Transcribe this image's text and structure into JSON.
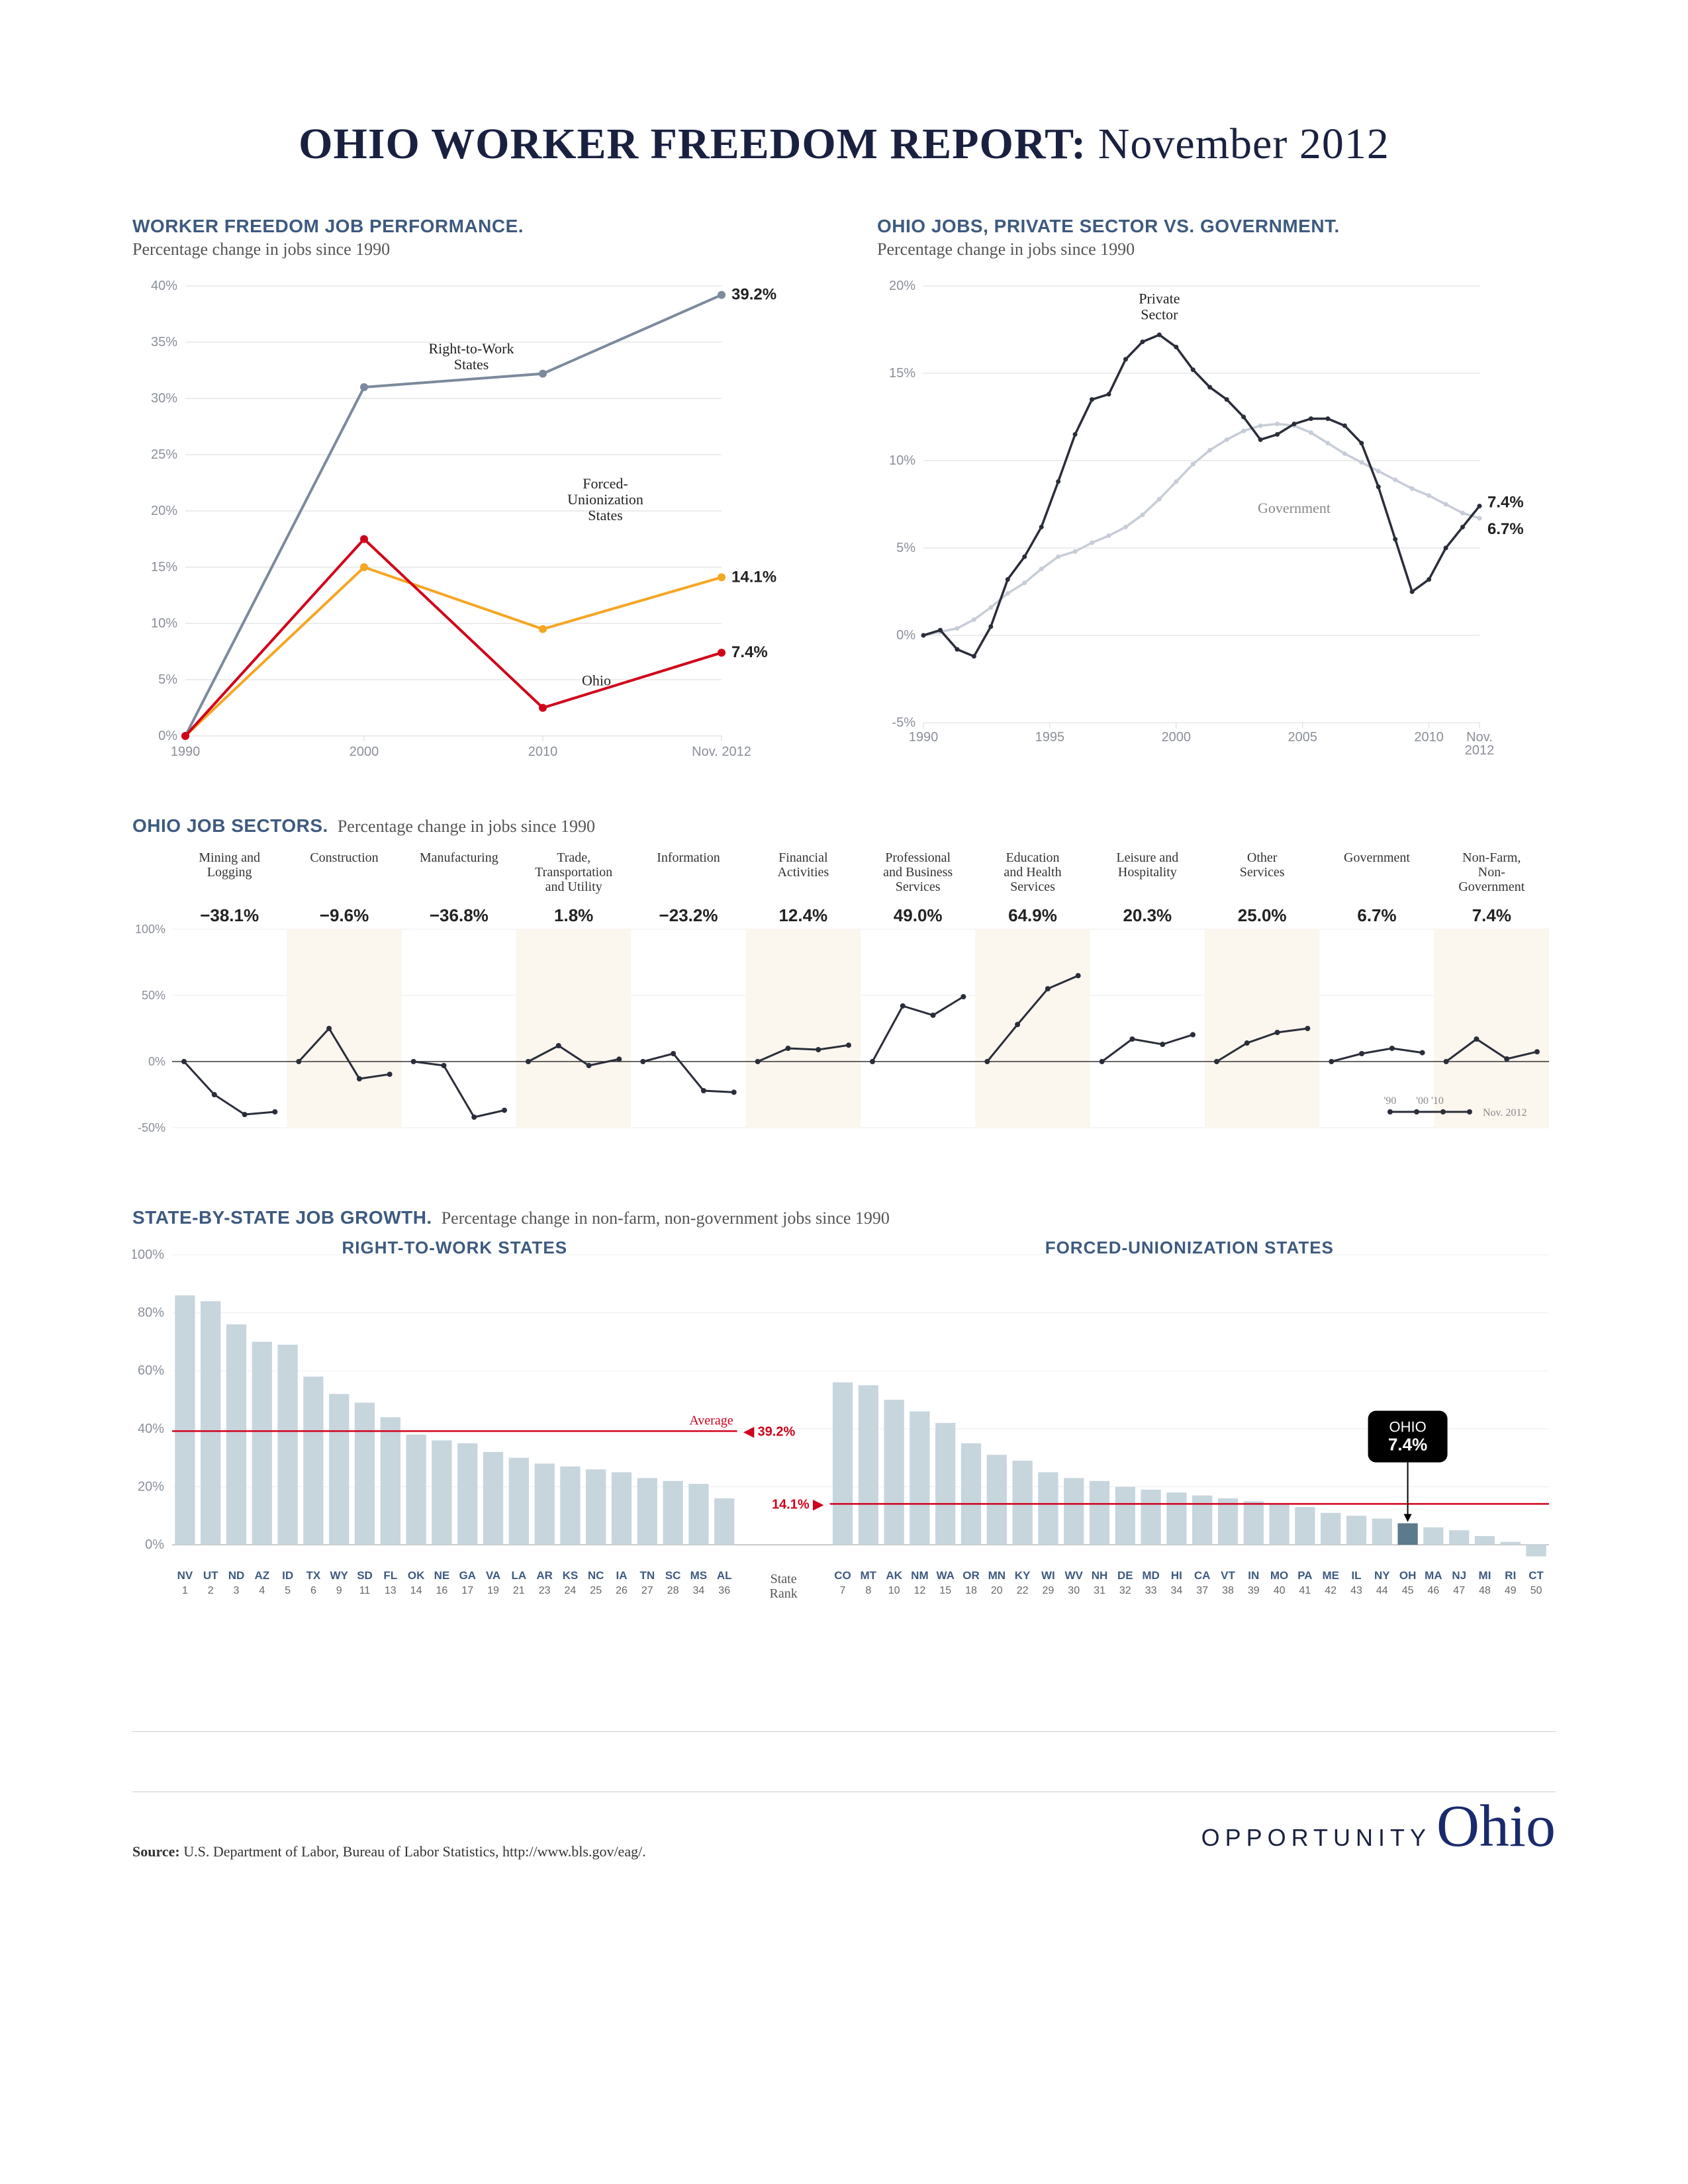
{
  "title_bold": "OHIO WORKER FREEDOM REPORT:",
  "title_rest": " November 2012",
  "colors": {
    "heading": "#3e5a80",
    "text": "#333333",
    "grid": "#d9d9d9",
    "axis_label": "#8a8f99",
    "rtw": "#7c8a9c",
    "forced": "#f5a623",
    "ohio": "#d0021b",
    "private": "#2a2e3a",
    "gov": "#c7cdd6",
    "bar": "#c7d5dd",
    "ohio_bar": "#5b7a8c",
    "avg_line": "#d0021b",
    "badge_bg": "#000000",
    "badge_text": "#ffffff",
    "spark_bg_alt": "#fbf6ee"
  },
  "chart1": {
    "title": "WORKER FREEDOM JOB PERFORMANCE.",
    "subtitle": "Percentage change in jobs since 1990",
    "ymin": 0,
    "ymax": 40,
    "ytick": 5,
    "x_labels": [
      "1990",
      "2000",
      "2010",
      "Nov. 2012"
    ],
    "series": [
      {
        "name": "Right-to-Work States",
        "label": "Right-to-Work\nStates",
        "values": [
          0,
          31,
          32.2,
          39.2
        ],
        "end": "39.2%"
      },
      {
        "name": "Forced-Unionization States",
        "label": "Forced-\nUnionization\nStates",
        "values": [
          0,
          15,
          9.5,
          14.1
        ],
        "end": "14.1%"
      },
      {
        "name": "Ohio",
        "label": "Ohio",
        "values": [
          0,
          17.5,
          2.5,
          7.4
        ],
        "end": "7.4%"
      }
    ]
  },
  "chart2": {
    "title": "OHIO JOBS, PRIVATE SECTOR VS. GOVERNMENT.",
    "subtitle": "Percentage change in jobs since 1990",
    "ymin": -5,
    "ymax": 20,
    "ytick": 5,
    "x_labels": [
      "1990",
      "1995",
      "2000",
      "2005",
      "2010",
      "Nov.\n2012"
    ],
    "label_private": "Private\nSector",
    "label_gov": "Government",
    "end_private": "7.4%",
    "end_gov": "6.7%",
    "private": [
      0,
      0.3,
      -0.8,
      -1.2,
      0.5,
      3.2,
      4.5,
      6.2,
      8.8,
      11.5,
      13.5,
      13.8,
      15.8,
      16.8,
      17.2,
      16.5,
      15.2,
      14.2,
      13.5,
      12.5,
      11.2,
      11.5,
      12.1,
      12.4,
      12.4,
      12.0,
      11.0,
      8.5,
      5.5,
      2.5,
      3.2,
      5.0,
      6.2,
      7.4
    ],
    "gov": [
      0,
      0.2,
      0.4,
      0.9,
      1.6,
      2.4,
      3.0,
      3.8,
      4.5,
      4.8,
      5.3,
      5.7,
      6.2,
      6.9,
      7.8,
      8.8,
      9.8,
      10.6,
      11.2,
      11.7,
      12.0,
      12.1,
      12.0,
      11.6,
      11.0,
      10.4,
      9.9,
      9.4,
      8.9,
      8.4,
      8.0,
      7.5,
      7.0,
      6.7
    ]
  },
  "sectors": {
    "title": "OHIO JOB SECTORS.",
    "subtitle": "Percentage change in jobs since 1990",
    "ymin": -50,
    "ymax": 100,
    "legend_labels": {
      "y90": "'90",
      "y00": "'00",
      "y10": "'10",
      "now": "Nov. 2012"
    },
    "items": [
      {
        "name": "Mining and\nLogging",
        "pct": "−38.1%",
        "v": [
          0,
          -25,
          -40,
          -38
        ]
      },
      {
        "name": "Construction",
        "pct": "−9.6%",
        "v": [
          0,
          25,
          -13,
          -9.6
        ]
      },
      {
        "name": "Manufacturing",
        "pct": "−36.8%",
        "v": [
          0,
          -3,
          -42,
          -36.8
        ]
      },
      {
        "name": "Trade,\nTransportation\nand Utility",
        "pct": "1.8%",
        "v": [
          0,
          12,
          -3,
          1.8
        ]
      },
      {
        "name": "Information",
        "pct": "−23.2%",
        "v": [
          0,
          6,
          -22,
          -23.2
        ]
      },
      {
        "name": "Financial\nActivities",
        "pct": "12.4%",
        "v": [
          0,
          10,
          9,
          12.4
        ]
      },
      {
        "name": "Professional\nand Business\nServices",
        "pct": "49.0%",
        "v": [
          0,
          42,
          35,
          49
        ]
      },
      {
        "name": "Education\nand Health\nServices",
        "pct": "64.9%",
        "v": [
          0,
          28,
          55,
          64.9
        ]
      },
      {
        "name": "Leisure and\nHospitality",
        "pct": "20.3%",
        "v": [
          0,
          17,
          13,
          20.3
        ]
      },
      {
        "name": "Other\nServices",
        "pct": "25.0%",
        "v": [
          0,
          14,
          22,
          25
        ]
      },
      {
        "name": "Government",
        "pct": "6.7%",
        "v": [
          0,
          6,
          10,
          6.7
        ]
      },
      {
        "name": "Non-Farm,\nNon-\nGovernment",
        "pct": "7.4%",
        "v": [
          0,
          17,
          2,
          7.4
        ]
      }
    ]
  },
  "states": {
    "title": "STATE-BY-STATE JOB GROWTH.",
    "subtitle": "Percentage change in non-farm, non-government jobs since 1990",
    "ymin": -5,
    "ymax": 100,
    "ytick": 20,
    "rtw_label": "RIGHT-TO-WORK STATES",
    "forced_label": "FORCED-UNIONIZATION STATES",
    "avg_label": "Average",
    "rtw_avg": 39.2,
    "rtw_avg_text": "39.2%",
    "forced_avg": 14.1,
    "forced_avg_text": "14.1%",
    "rank_label": "State\nRank",
    "ohio_badge": "OHIO",
    "ohio_badge_val": "7.4%",
    "rtw": [
      {
        "s": "NV",
        "r": 1,
        "v": 86
      },
      {
        "s": "UT",
        "r": 2,
        "v": 84
      },
      {
        "s": "ND",
        "r": 3,
        "v": 76
      },
      {
        "s": "AZ",
        "r": 4,
        "v": 70
      },
      {
        "s": "ID",
        "r": 5,
        "v": 69
      },
      {
        "s": "TX",
        "r": 6,
        "v": 58
      },
      {
        "s": "WY",
        "r": 9,
        "v": 52
      },
      {
        "s": "SD",
        "r": 11,
        "v": 49
      },
      {
        "s": "FL",
        "r": 13,
        "v": 44
      },
      {
        "s": "OK",
        "r": 14,
        "v": 38
      },
      {
        "s": "NE",
        "r": 16,
        "v": 36
      },
      {
        "s": "GA",
        "r": 17,
        "v": 35
      },
      {
        "s": "VA",
        "r": 19,
        "v": 32
      },
      {
        "s": "LA",
        "r": 21,
        "v": 30
      },
      {
        "s": "AR",
        "r": 23,
        "v": 28
      },
      {
        "s": "KS",
        "r": 24,
        "v": 27
      },
      {
        "s": "NC",
        "r": 25,
        "v": 26
      },
      {
        "s": "IA",
        "r": 26,
        "v": 25
      },
      {
        "s": "TN",
        "r": 27,
        "v": 23
      },
      {
        "s": "SC",
        "r": 28,
        "v": 22
      },
      {
        "s": "MS",
        "r": 34,
        "v": 21
      },
      {
        "s": "AL",
        "r": 36,
        "v": 16
      }
    ],
    "forced": [
      {
        "s": "CO",
        "r": 7,
        "v": 56
      },
      {
        "s": "MT",
        "r": 8,
        "v": 55
      },
      {
        "s": "AK",
        "r": 10,
        "v": 50
      },
      {
        "s": "NM",
        "r": 12,
        "v": 46
      },
      {
        "s": "WA",
        "r": 15,
        "v": 42
      },
      {
        "s": "OR",
        "r": 18,
        "v": 35
      },
      {
        "s": "MN",
        "r": 20,
        "v": 31
      },
      {
        "s": "KY",
        "r": 22,
        "v": 29
      },
      {
        "s": "WI",
        "r": 29,
        "v": 25
      },
      {
        "s": "WV",
        "r": 30,
        "v": 23
      },
      {
        "s": "NH",
        "r": 31,
        "v": 22
      },
      {
        "s": "DE",
        "r": 32,
        "v": 20
      },
      {
        "s": "MD",
        "r": 33,
        "v": 19
      },
      {
        "s": "HI",
        "r": 34,
        "v": 18
      },
      {
        "s": "CA",
        "r": 37,
        "v": 17
      },
      {
        "s": "VT",
        "r": 38,
        "v": 16
      },
      {
        "s": "IN",
        "r": 39,
        "v": 15
      },
      {
        "s": "MO",
        "r": 40,
        "v": 14
      },
      {
        "s": "PA",
        "r": 41,
        "v": 13
      },
      {
        "s": "ME",
        "r": 42,
        "v": 11
      },
      {
        "s": "IL",
        "r": 43,
        "v": 10
      },
      {
        "s": "NY",
        "r": 44,
        "v": 9
      },
      {
        "s": "OH",
        "r": 45,
        "v": 7.4
      },
      {
        "s": "MA",
        "r": 46,
        "v": 6
      },
      {
        "s": "NJ",
        "r": 47,
        "v": 5
      },
      {
        "s": "MI",
        "r": 48,
        "v": 3
      },
      {
        "s": "RI",
        "r": 49,
        "v": 1
      },
      {
        "s": "CT",
        "r": 50,
        "v": -4
      }
    ]
  },
  "source_label": "Source:",
  "source_text": " U.S. Department of Labor, Bureau of Labor Statistics, http://www.bls.gov/eag/.",
  "logo_text": "OPPORTUNITY",
  "logo_script": "Ohio"
}
